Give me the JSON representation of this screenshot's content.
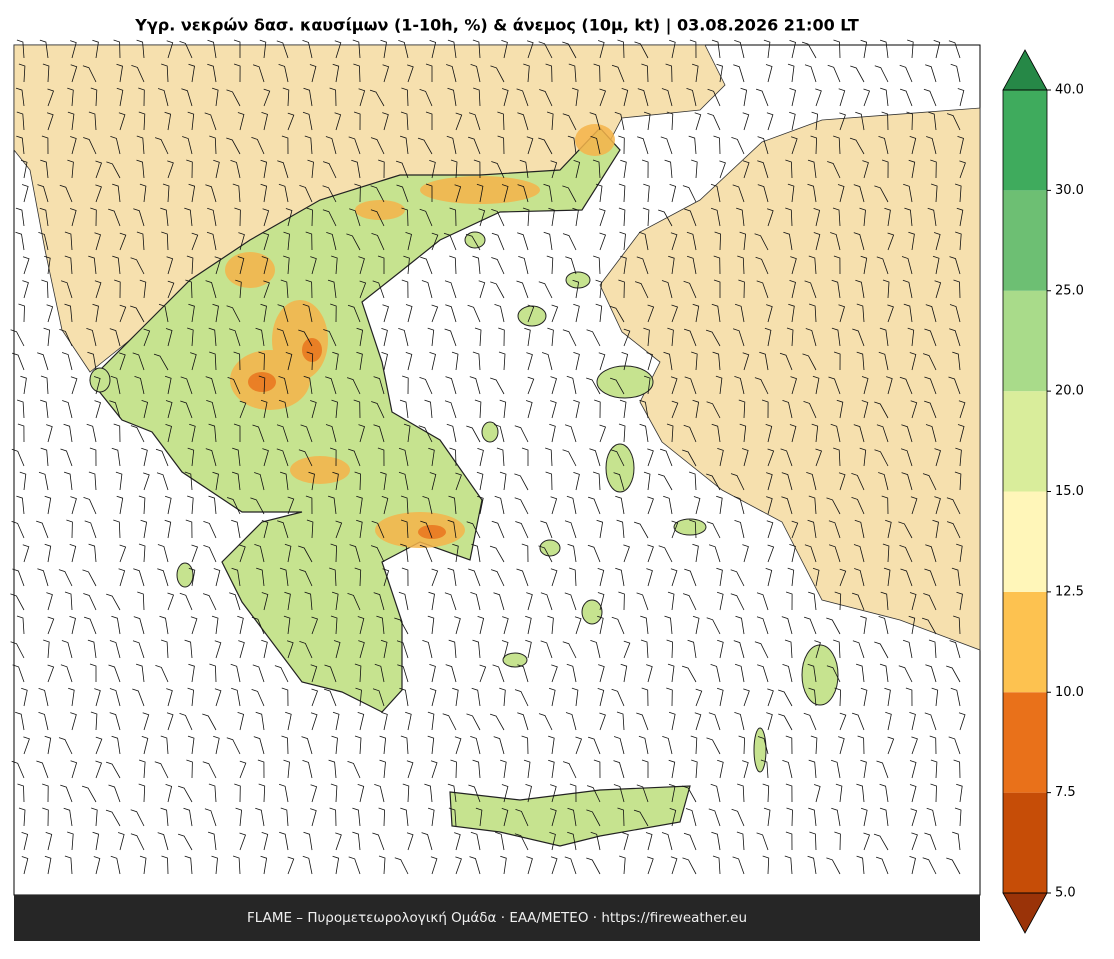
{
  "title": "Υγρ. νεκρών δασ. καυσίμων (1-10h, %) & άνεμος (10μ, kt)  |  03.08.2026 21:00 LT",
  "footer": "FLAME – Πυρομετεωρολογική Ομάδα · ΕΑΑ/METEO · https://fireweather.eu",
  "colorbar": {
    "levels": [
      5,
      7.5,
      10,
      12.5,
      15,
      20,
      25,
      30,
      40
    ],
    "colors": [
      "#c64d07",
      "#e9711a",
      "#fdc250",
      "#fff6b9",
      "#d9ed9b",
      "#a9db8a",
      "#6dbf73",
      "#3fab5d"
    ],
    "under_color": "#9a3308",
    "over_color": "#268847",
    "ticks": [
      {
        "value": 5,
        "label": "5.0"
      },
      7.5,
      {
        "value": 10,
        "label": "10.0"
      },
      12.5,
      {
        "value": 15,
        "label": "15.0"
      },
      {
        "value": 20,
        "label": "20.0"
      },
      {
        "value": 25,
        "label": "25.0"
      },
      {
        "value": 30,
        "label": "30.0"
      },
      {
        "value": 40,
        "label": "40.0"
      }
    ]
  }
}
